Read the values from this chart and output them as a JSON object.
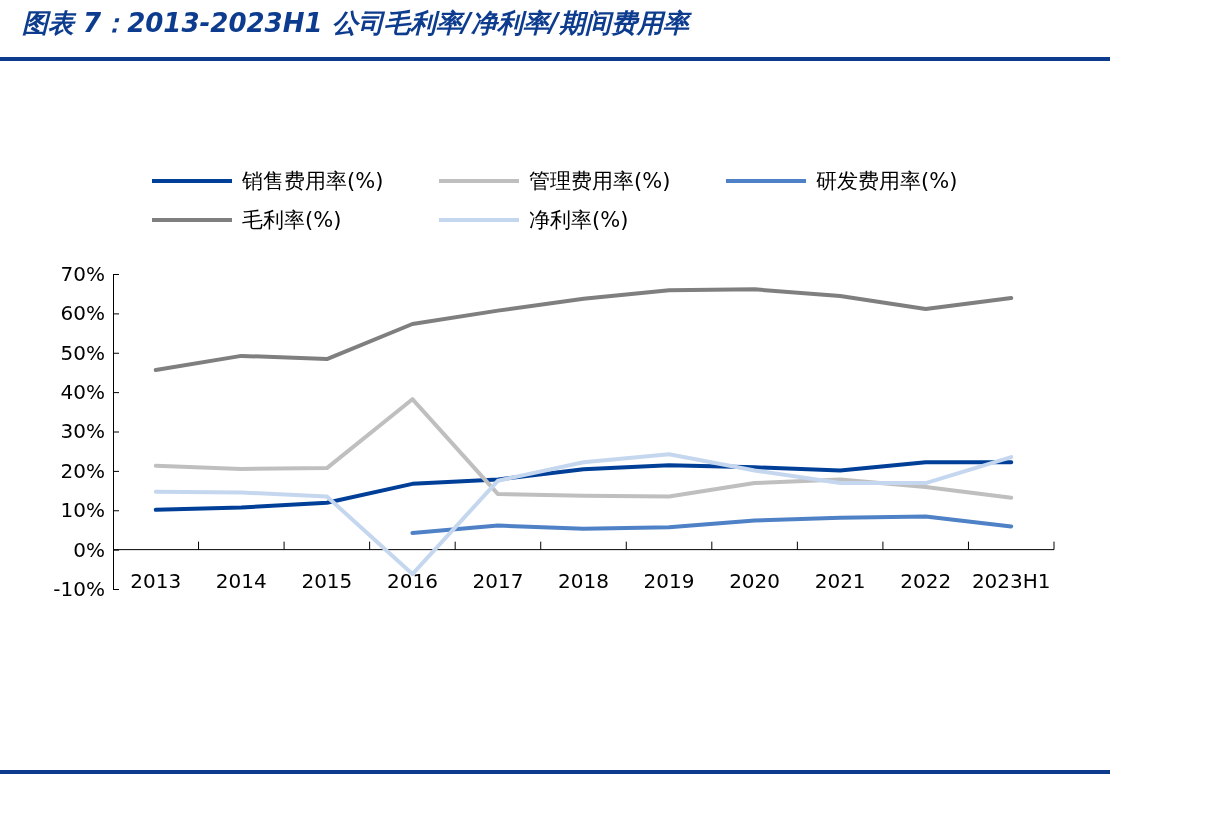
{
  "chart_data": {
    "type": "line",
    "title": "图表 7：2013-2023H1 公司毛利率/净利率/期间费用率",
    "categories": [
      "2013",
      "2014",
      "2015",
      "2016",
      "2017",
      "2018",
      "2019",
      "2020",
      "2021",
      "2022",
      "2023H1"
    ],
    "series": [
      {
        "name": "销售费用率(%)",
        "color": "#003f98",
        "values": [
          10.1,
          10.7,
          11.9,
          16.7,
          17.8,
          20.4,
          21.4,
          20.9,
          20.1,
          22.2,
          22.2
        ]
      },
      {
        "name": "管理费用率(%)",
        "color": "#bfbfbf",
        "values": [
          21.3,
          20.5,
          20.7,
          38.2,
          14.1,
          13.7,
          13.5,
          16.9,
          17.8,
          15.9,
          13.2
        ]
      },
      {
        "name": "研发费用率(%)",
        "color": "#4f81c6",
        "values": [
          null,
          null,
          null,
          4.2,
          6.1,
          5.3,
          5.7,
          7.4,
          8.1,
          8.4,
          5.9
        ]
      },
      {
        "name": "毛利率(%)",
        "color": "#7f7f7f",
        "values": [
          45.6,
          49.2,
          48.4,
          57.3,
          60.7,
          63.7,
          65.9,
          66.1,
          64.4,
          61.1,
          63.9
        ]
      },
      {
        "name": "净利率(%)",
        "color": "#c5d7ee",
        "values": [
          14.7,
          14.5,
          13.5,
          -6.2,
          17.5,
          22.2,
          24.2,
          20.1,
          16.9,
          16.9,
          23.5
        ]
      }
    ],
    "ylim": [
      -10,
      70
    ],
    "yticks": [
      {
        "value": -10,
        "label": "-10%"
      },
      {
        "value": 0,
        "label": "0%"
      },
      {
        "value": 10,
        "label": "10%"
      },
      {
        "value": 20,
        "label": "20%"
      },
      {
        "value": 30,
        "label": "30%"
      },
      {
        "value": 40,
        "label": "40%"
      },
      {
        "value": 50,
        "label": "50%"
      },
      {
        "value": 60,
        "label": "60%"
      },
      {
        "value": 70,
        "label": "70%"
      }
    ],
    "grid": false,
    "legend": "top",
    "marker": "none",
    "line_style": "solid"
  }
}
